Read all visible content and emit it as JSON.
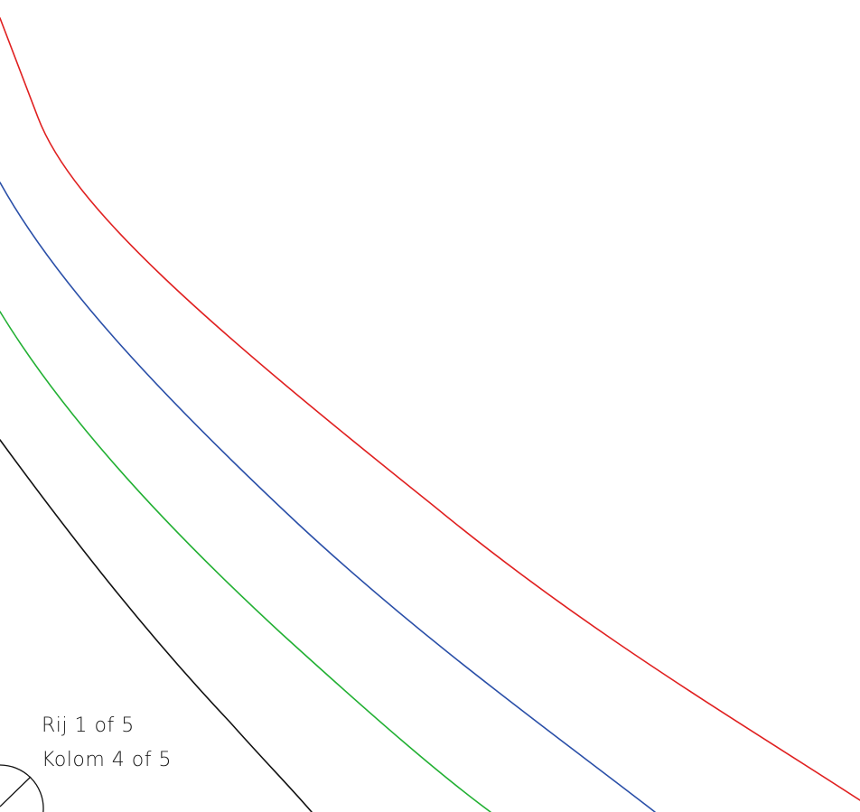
{
  "sheet": {
    "row_text": "Rij 1 of 5",
    "column_text": "Kolom 4 of 5"
  },
  "curves": [
    {
      "name": "red-curve",
      "color": "#e02020"
    },
    {
      "name": "blue-curve",
      "color": "#2a4fa8"
    },
    {
      "name": "green-curve",
      "color": "#22b033"
    },
    {
      "name": "black-curve",
      "color": "#111111"
    }
  ],
  "north_arrow": {
    "icon": "north-arrow-icon"
  }
}
